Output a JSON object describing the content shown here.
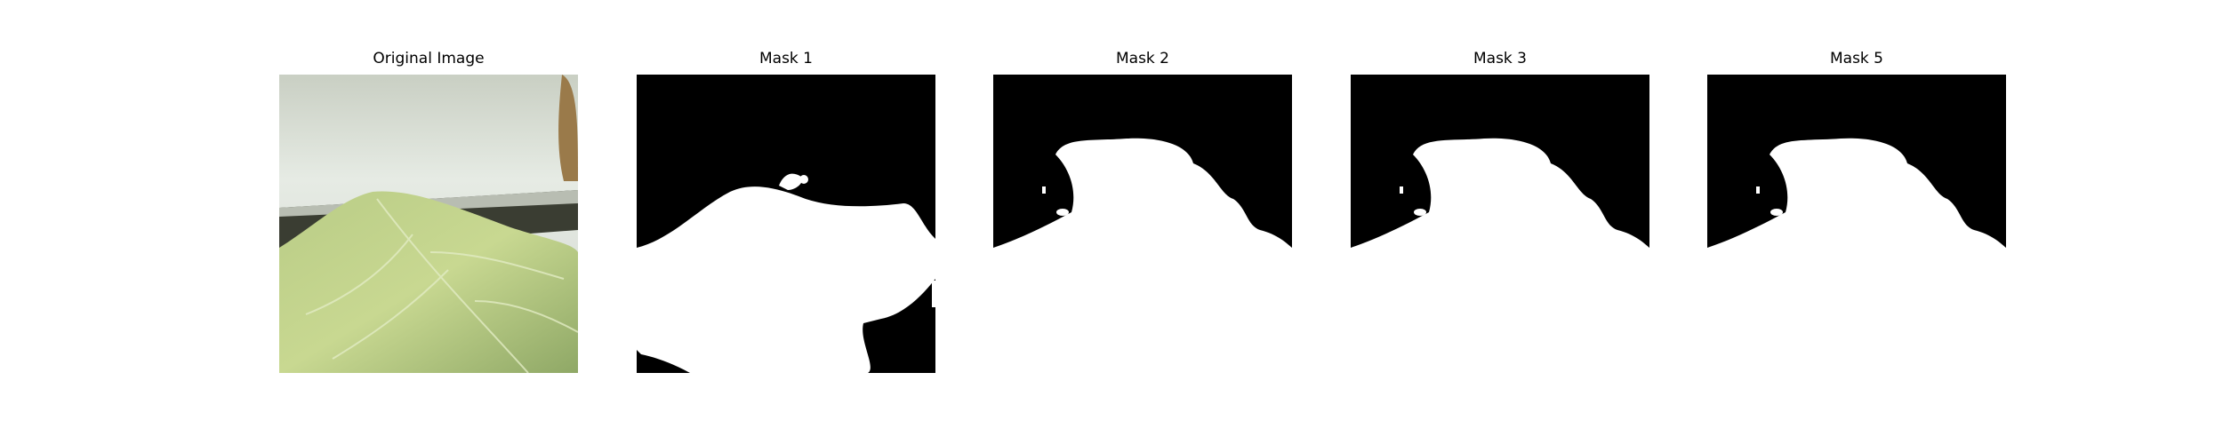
{
  "figure": {
    "panels": [
      {
        "id": "original",
        "title": "Original Image"
      },
      {
        "id": "mask1",
        "title": "Mask 1"
      },
      {
        "id": "mask2",
        "title": "Mask 2"
      },
      {
        "id": "mask3",
        "title": "Mask 3"
      },
      {
        "id": "mask5",
        "title": "Mask 5"
      }
    ]
  },
  "colors": {
    "mask_foreground": "#ffffff",
    "mask_background": "#000000",
    "wall": "#dfe4dc",
    "leaf": "#a9c07a"
  }
}
